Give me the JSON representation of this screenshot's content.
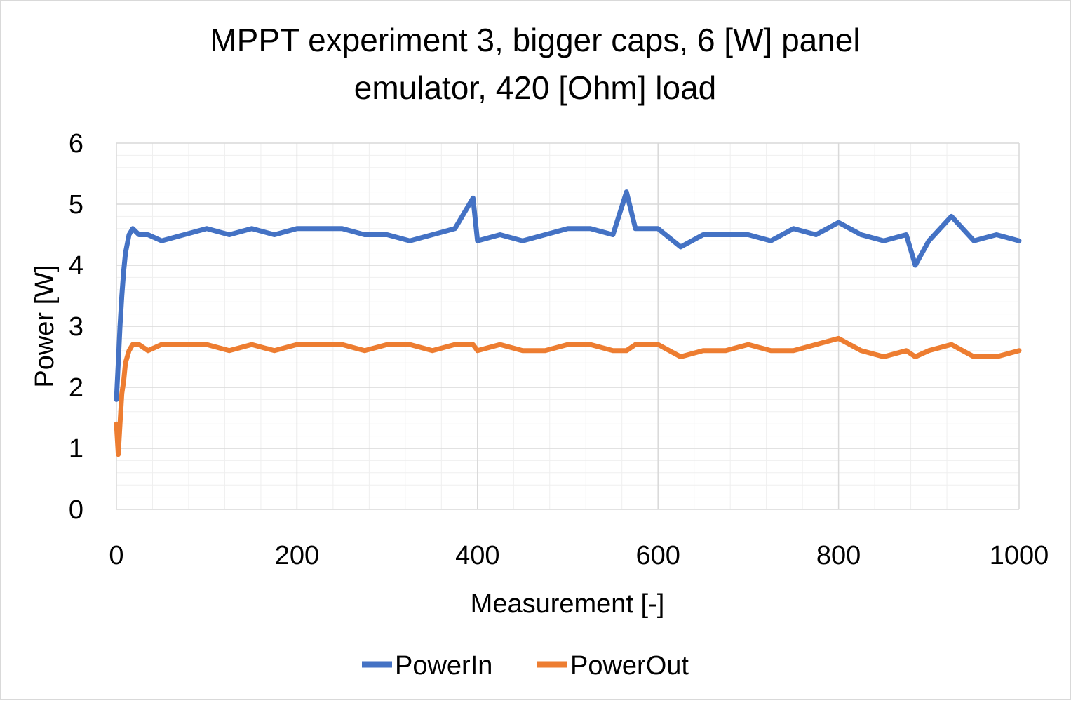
{
  "chart_data": {
    "type": "line",
    "title_lines": [
      "MPPT experiment 3, bigger caps, 6 [W] panel",
      "emulator, 420 [Ohm] load"
    ],
    "xlabel": "Measurement [-]",
    "ylabel": "Power [W]",
    "xlim": [
      0,
      1000
    ],
    "ylim": [
      0,
      6
    ],
    "x_ticks": [
      "0",
      "200",
      "400",
      "600",
      "800",
      "1000"
    ],
    "y_ticks": [
      "0",
      "1",
      "2",
      "3",
      "4",
      "5",
      "6"
    ],
    "grid": "major and minor",
    "legend_position": "bottom",
    "x": [
      0,
      2,
      4,
      6,
      8,
      10,
      14,
      18,
      25,
      35,
      50,
      75,
      100,
      125,
      150,
      175,
      200,
      225,
      250,
      275,
      300,
      325,
      350,
      375,
      395,
      400,
      425,
      450,
      475,
      500,
      525,
      550,
      565,
      575,
      600,
      625,
      650,
      675,
      700,
      725,
      750,
      775,
      800,
      825,
      850,
      875,
      885,
      900,
      925,
      950,
      975,
      1000
    ],
    "series": [
      {
        "name": "PowerIn",
        "color": "#4472C4",
        "values": [
          1.8,
          2.4,
          3.0,
          3.5,
          3.9,
          4.2,
          4.5,
          4.6,
          4.5,
          4.5,
          4.4,
          4.5,
          4.6,
          4.5,
          4.6,
          4.5,
          4.6,
          4.6,
          4.6,
          4.5,
          4.5,
          4.4,
          4.5,
          4.6,
          5.1,
          4.4,
          4.5,
          4.4,
          4.5,
          4.6,
          4.6,
          4.5,
          5.2,
          4.6,
          4.6,
          4.3,
          4.5,
          4.5,
          4.5,
          4.4,
          4.6,
          4.5,
          4.7,
          4.5,
          4.4,
          4.5,
          4.0,
          4.4,
          4.8,
          4.4,
          4.5,
          4.4
        ]
      },
      {
        "name": "PowerOut",
        "color": "#ED7D31",
        "values": [
          1.4,
          0.9,
          1.4,
          1.9,
          2.1,
          2.4,
          2.6,
          2.7,
          2.7,
          2.6,
          2.7,
          2.7,
          2.7,
          2.6,
          2.7,
          2.6,
          2.7,
          2.7,
          2.7,
          2.6,
          2.7,
          2.7,
          2.6,
          2.7,
          2.7,
          2.6,
          2.7,
          2.6,
          2.6,
          2.7,
          2.7,
          2.6,
          2.6,
          2.7,
          2.7,
          2.5,
          2.6,
          2.6,
          2.7,
          2.6,
          2.6,
          2.7,
          2.8,
          2.6,
          2.5,
          2.6,
          2.5,
          2.6,
          2.7,
          2.5,
          2.5,
          2.6
        ]
      }
    ]
  }
}
